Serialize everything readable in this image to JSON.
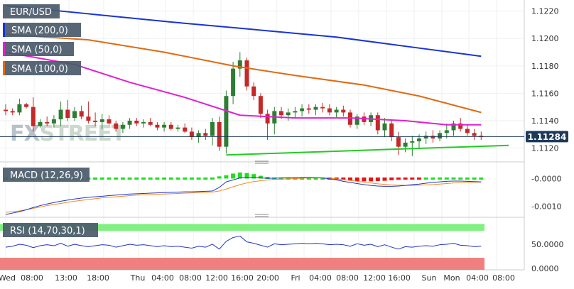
{
  "colors": {
    "candle_up": "#2e7d32",
    "candle_down": "#c62828",
    "sma200": "#1a33d6",
    "sma50": "#e020d0",
    "sma100": "#e06a10",
    "trendline": "#22cc22",
    "price_tag_bg": "#1d3a5a",
    "macd_line": "#2233cc",
    "signal_line": "#f08a20",
    "hist_up": "#22dd22",
    "hist_down": "#ee1111",
    "rsi_line": "#2233cc",
    "rsi_overbought": "#80f080",
    "rsi_oversold": "#f08080",
    "legend_bg": "#4a5a6a"
  },
  "legend": {
    "symbol": "EUR/USD",
    "sma200": "SMA (200,0)",
    "sma50": "SMA (50,0)",
    "sma100": "SMA (100,0)",
    "macd": "MACD (12,26,9)",
    "rsi": "RSI (14,70,30,1)"
  },
  "watermark": {
    "fx": "FX",
    "street": "STREET"
  },
  "price_tag": "1.11284",
  "chart_data": [
    {
      "type": "candlestick",
      "symbol": "EUR/USD",
      "ylim": [
        1.1112,
        1.1226
      ],
      "y_ticks": [
        "1.1220",
        "1.1200",
        "1.1180",
        "1.1160",
        "1.1140",
        "1.1120"
      ],
      "last_price": 1.11284,
      "ohlc": [
        [
          1.1148,
          1.1152,
          1.1144,
          1.1147
        ],
        [
          1.1147,
          1.1149,
          1.1144,
          1.1146
        ],
        [
          1.1146,
          1.1156,
          1.1144,
          1.1152
        ],
        [
          1.1152,
          1.1153,
          1.1149,
          1.115
        ],
        [
          1.115,
          1.1157,
          1.1132,
          1.1136
        ],
        [
          1.1136,
          1.1141,
          1.1135,
          1.1139
        ],
        [
          1.1139,
          1.1143,
          1.1136,
          1.1138
        ],
        [
          1.1138,
          1.1144,
          1.1135,
          1.1141
        ],
        [
          1.1141,
          1.1154,
          1.1136,
          1.1148
        ],
        [
          1.1148,
          1.1155,
          1.114,
          1.1142
        ],
        [
          1.1142,
          1.115,
          1.114,
          1.1147
        ],
        [
          1.1147,
          1.1151,
          1.1141,
          1.1143
        ],
        [
          1.1143,
          1.1154,
          1.1138,
          1.114
        ],
        [
          1.114,
          1.1146,
          1.1136,
          1.1139
        ],
        [
          1.1139,
          1.1145,
          1.1134,
          1.1141
        ],
        [
          1.1141,
          1.1144,
          1.1137,
          1.1138
        ],
        [
          1.1138,
          1.114,
          1.1132,
          1.1134
        ],
        [
          1.1134,
          1.1139,
          1.1131,
          1.1137
        ],
        [
          1.1137,
          1.1142,
          1.1134,
          1.114
        ],
        [
          1.114,
          1.1142,
          1.1136,
          1.1138
        ],
        [
          1.1138,
          1.1141,
          1.1135,
          1.1139
        ],
        [
          1.1139,
          1.1142,
          1.1136,
          1.1137
        ],
        [
          1.1137,
          1.1139,
          1.1133,
          1.1135
        ],
        [
          1.1135,
          1.1139,
          1.1132,
          1.1137
        ],
        [
          1.1137,
          1.1139,
          1.1133,
          1.1134
        ],
        [
          1.1134,
          1.1137,
          1.1132,
          1.1135
        ],
        [
          1.1135,
          1.1138,
          1.1131,
          1.1132
        ],
        [
          1.1132,
          1.1135,
          1.1126,
          1.1128
        ],
        [
          1.1128,
          1.1133,
          1.1124,
          1.1131
        ],
        [
          1.1131,
          1.1134,
          1.1126,
          1.1129
        ],
        [
          1.1129,
          1.1142,
          1.1122,
          1.1139
        ],
        [
          1.1139,
          1.1143,
          1.1118,
          1.1121
        ],
        [
          1.1121,
          1.1162,
          1.1116,
          1.1158
        ],
        [
          1.1158,
          1.1183,
          1.1152,
          1.1178
        ],
        [
          1.1178,
          1.119,
          1.1172,
          1.1184
        ],
        [
          1.1184,
          1.1186,
          1.1162,
          1.1165
        ],
        [
          1.1165,
          1.1168,
          1.1155,
          1.1158
        ],
        [
          1.1158,
          1.116,
          1.1142,
          1.1145
        ],
        [
          1.1145,
          1.1148,
          1.1126,
          1.1138
        ],
        [
          1.1138,
          1.115,
          1.113,
          1.1147
        ],
        [
          1.1147,
          1.115,
          1.1141,
          1.1144
        ],
        [
          1.1144,
          1.1149,
          1.114,
          1.1146
        ],
        [
          1.1146,
          1.115,
          1.1142,
          1.1147
        ],
        [
          1.1147,
          1.1152,
          1.1143,
          1.1149
        ],
        [
          1.1149,
          1.1152,
          1.1145,
          1.1148
        ],
        [
          1.1148,
          1.1152,
          1.1144,
          1.115
        ],
        [
          1.115,
          1.1153,
          1.1146,
          1.1149
        ],
        [
          1.1149,
          1.1152,
          1.1144,
          1.1146
        ],
        [
          1.1146,
          1.115,
          1.1142,
          1.1148
        ],
        [
          1.1148,
          1.1151,
          1.1143,
          1.1146
        ],
        [
          1.1146,
          1.1148,
          1.1135,
          1.1137
        ],
        [
          1.1137,
          1.1145,
          1.1134,
          1.1143
        ],
        [
          1.1143,
          1.1146,
          1.1137,
          1.1139
        ],
        [
          1.1139,
          1.1146,
          1.1136,
          1.1144
        ],
        [
          1.1144,
          1.1146,
          1.113,
          1.1133
        ],
        [
          1.1133,
          1.1142,
          1.1128,
          1.1138
        ],
        [
          1.1138,
          1.1141,
          1.1125,
          1.1128
        ],
        [
          1.1128,
          1.1132,
          1.1115,
          1.1121
        ],
        [
          1.1121,
          1.1127,
          1.1117,
          1.1124
        ],
        [
          1.1124,
          1.1129,
          1.1114,
          1.1125
        ],
        [
          1.1125,
          1.113,
          1.112,
          1.1127
        ],
        [
          1.1127,
          1.1132,
          1.1123,
          1.1129
        ],
        [
          1.1129,
          1.1133,
          1.1124,
          1.1127
        ],
        [
          1.1127,
          1.1133,
          1.1125,
          1.1131
        ],
        [
          1.1131,
          1.1138,
          1.1127,
          1.1133
        ],
        [
          1.1133,
          1.114,
          1.1129,
          1.1138
        ],
        [
          1.1138,
          1.1142,
          1.1132,
          1.1134
        ],
        [
          1.1134,
          1.1137,
          1.1129,
          1.1131
        ],
        [
          1.1131,
          1.1134,
          1.1126,
          1.1129
        ],
        [
          1.1129,
          1.1132,
          1.1126,
          1.1128
        ]
      ],
      "sma200": [
        [
          0,
          1.1224
        ],
        [
          12,
          1.1218
        ],
        [
          24,
          1.1212
        ],
        [
          35,
          1.1207
        ],
        [
          48,
          1.1201
        ],
        [
          60,
          1.1193
        ],
        [
          69,
          1.1187
        ]
      ],
      "sma100": [
        [
          0,
          1.1203
        ],
        [
          12,
          1.1199
        ],
        [
          23,
          1.119
        ],
        [
          33,
          1.118
        ],
        [
          42,
          1.1173
        ],
        [
          52,
          1.1166
        ],
        [
          60,
          1.1158
        ],
        [
          69,
          1.1146
        ]
      ],
      "sma50": [
        [
          0,
          1.119
        ],
        [
          10,
          1.1181
        ],
        [
          18,
          1.1168
        ],
        [
          26,
          1.1157
        ],
        [
          34,
          1.1144
        ],
        [
          42,
          1.1142
        ],
        [
          50,
          1.1142
        ],
        [
          58,
          1.114
        ],
        [
          64,
          1.1137
        ],
        [
          69,
          1.1137
        ]
      ],
      "trendline": [
        [
          32,
          1.1115
        ],
        [
          73,
          1.1122
        ]
      ]
    },
    {
      "type": "bar+line",
      "name": "MACD (12,26,9)",
      "y_ticks": [
        "-0.0000",
        "-0.0010"
      ],
      "ylim": [
        -0.0013,
        0.0005
      ],
      "histogram": [
        0,
        0,
        0,
        0,
        2e-05,
        2e-05,
        2e-05,
        2e-05,
        2e-05,
        2e-05,
        2e-05,
        2e-05,
        2e-05,
        2e-05,
        2e-05,
        2e-05,
        2e-05,
        2e-05,
        2e-05,
        2e-05,
        2e-05,
        2e-05,
        2e-05,
        2e-05,
        2e-05,
        2e-05,
        2e-05,
        2e-05,
        2e-05,
        2e-05,
        4e-05,
        8e-05,
        0.00012,
        0.00018,
        0.00022,
        0.0002,
        0.00016,
        0.0001,
        6e-05,
        4e-05,
        3e-05,
        3e-05,
        2e-05,
        2e-05,
        2e-05,
        2e-05,
        0,
        -3e-05,
        -6e-05,
        -9e-05,
        -0.00011,
        -0.00013,
        -0.00014,
        -0.00014,
        -0.00013,
        -0.00012,
        -0.0001,
        -8e-05,
        -5e-05,
        -3e-05,
        -1e-05,
        1e-05,
        3e-05,
        4e-05,
        4e-05,
        4e-05,
        3e-05,
        3e-05,
        2e-05,
        2e-05
      ],
      "macd_line": [
        -0.0013,
        -0.00125,
        -0.0012,
        -0.00113,
        -0.00105,
        -0.00098,
        -0.00092,
        -0.00087,
        -0.00082,
        -0.00078,
        -0.00074,
        -0.00071,
        -0.00068,
        -0.00066,
        -0.00064,
        -0.00062,
        -0.0006,
        -0.00058,
        -0.00056,
        -0.00055,
        -0.00054,
        -0.00053,
        -0.00052,
        -0.00051,
        -0.0005,
        -0.00049,
        -0.00048,
        -0.00048,
        -0.00047,
        -0.00046,
        -0.00045,
        -0.00032,
        -0.00012,
        -5e-05,
        2e-05,
        4e-05,
        3e-05,
        2e-05,
        1e-05,
        1e-05,
        2e-05,
        3e-05,
        3e-05,
        4e-05,
        4e-05,
        3e-05,
        2e-05,
        -1e-05,
        -5e-05,
        -0.0001,
        -0.00014,
        -0.00018,
        -0.00022,
        -0.00025,
        -0.00027,
        -0.00028,
        -0.00028,
        -0.00027,
        -0.00025,
        -0.00022,
        -0.0002,
        -0.00017,
        -0.00014,
        -0.00012,
        -0.0001,
        -9e-05,
        -9e-05,
        -0.0001,
        -0.00011,
        -0.00012
      ],
      "signal_line": [
        -0.00122,
        -0.0012,
        -0.00117,
        -0.00113,
        -0.00108,
        -0.00103,
        -0.00098,
        -0.00094,
        -0.0009,
        -0.00086,
        -0.00082,
        -0.00079,
        -0.00076,
        -0.00073,
        -0.0007,
        -0.00068,
        -0.00066,
        -0.00064,
        -0.00062,
        -0.0006,
        -0.00059,
        -0.00058,
        -0.00057,
        -0.00056,
        -0.00055,
        -0.00054,
        -0.00053,
        -0.00052,
        -0.00051,
        -0.0005,
        -0.00049,
        -0.00045,
        -0.00038,
        -0.0003,
        -0.00022,
        -0.00016,
        -0.00011,
        -8e-05,
        -5e-05,
        -3e-05,
        -2e-05,
        -1e-05,
        0.0,
        1e-05,
        2e-05,
        2e-05,
        2e-05,
        1e-05,
        -1e-05,
        -4e-05,
        -7e-05,
        -0.0001,
        -0.00013,
        -0.00016,
        -0.00019,
        -0.00021,
        -0.00023,
        -0.00024,
        -0.00025,
        -0.00025,
        -0.00024,
        -0.00023,
        -0.00022,
        -0.0002,
        -0.00018,
        -0.00016,
        -0.00015,
        -0.00014,
        -0.00013,
        -0.00013
      ]
    },
    {
      "type": "line",
      "name": "RSI (14,70,30,1)",
      "y_ticks": [
        "50.0000",
        "0.0000"
      ],
      "ylim": [
        0,
        100
      ],
      "overbought": 70,
      "oversold": 30,
      "values": [
        44,
        46,
        50,
        48,
        43,
        47,
        49,
        47,
        52,
        46,
        50,
        47,
        45,
        47,
        49,
        48,
        44,
        47,
        50,
        48,
        49,
        47,
        45,
        47,
        45,
        46,
        44,
        42,
        46,
        44,
        50,
        40,
        56,
        64,
        67,
        55,
        52,
        48,
        44,
        51,
        49,
        50,
        51,
        52,
        51,
        52,
        51,
        49,
        50,
        49,
        46,
        51,
        48,
        50,
        45,
        49,
        44,
        40,
        45,
        44,
        46,
        47,
        46,
        49,
        50,
        52,
        48,
        47,
        45,
        46
      ]
    }
  ],
  "x_axis": {
    "labels": [
      "Wed",
      "08:00",
      "13:00",
      "18:00",
      "Thu",
      "04:00",
      "08:00",
      "12:00",
      "16:00",
      "20:00",
      "Fri",
      "04:00",
      "08:00",
      "12:00",
      "16:00",
      "Sun",
      "Mon",
      "04:00",
      "08:00"
    ]
  }
}
